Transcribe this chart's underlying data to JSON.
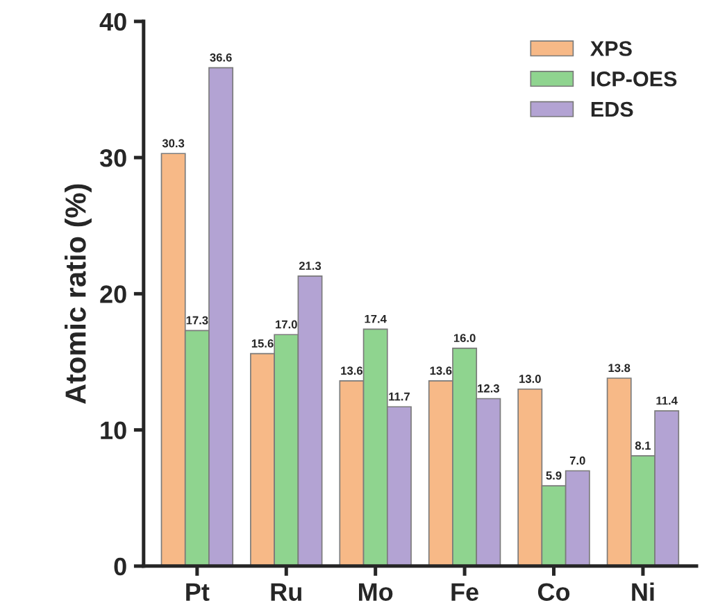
{
  "chart_data": {
    "type": "bar",
    "ylabel": "Atomic ratio (%)",
    "categories": [
      "Pt",
      "Ru",
      "Mo",
      "Fe",
      "Co",
      "Ni"
    ],
    "series": [
      {
        "name": "XPS",
        "color": "#f7b987",
        "values": [
          30.3,
          15.6,
          13.6,
          13.6,
          13.0,
          13.8
        ],
        "value_labels": [
          "30.3",
          "15.6",
          "13.6",
          "13.6",
          "13.0",
          "13.8"
        ]
      },
      {
        "name": "ICP-OES",
        "color": "#8fd48f",
        "values": [
          17.3,
          17.0,
          17.4,
          16.0,
          5.9,
          8.1
        ],
        "value_labels": [
          "17.3",
          "17.0",
          "17.4",
          "16.0",
          "5.9",
          "8.1"
        ]
      },
      {
        "name": "EDS",
        "color": "#b3a3d3",
        "values": [
          36.6,
          21.3,
          11.7,
          12.3,
          7.0,
          11.4
        ],
        "value_labels": [
          "36.6",
          "21.3",
          "11.7",
          "12.3",
          "7.0",
          "11.4"
        ]
      }
    ],
    "ylim": [
      0,
      40
    ],
    "yticks": [
      0,
      10,
      20,
      30,
      40
    ],
    "legend": "top right",
    "grid": false
  }
}
